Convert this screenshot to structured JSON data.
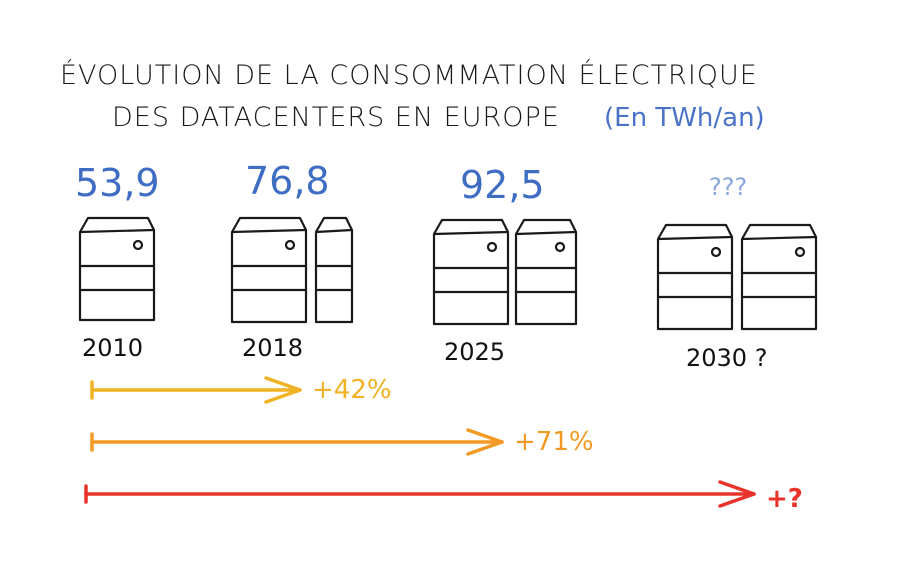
{
  "chart_data": {
    "type": "bar",
    "title_line1": "ÉVOLUTION DE LA CONSOMMATION ÉLECTRIQUE",
    "title_line2": "DES DATACENTERS EN EUROPE",
    "unit": "(En TWh/an)",
    "categories": [
      "2010",
      "2018",
      "2025",
      "2030 ?"
    ],
    "values": [
      53.9,
      76.8,
      92.5,
      null
    ],
    "value_labels": [
      "53,9",
      "76,8",
      "92,5",
      "???"
    ],
    "growth_arrows": [
      {
        "from": "2010",
        "to": "2018",
        "label": "+42%",
        "color": "#f0b323"
      },
      {
        "from": "2010",
        "to": "2025",
        "label": "+71%",
        "color": "#f39a24"
      },
      {
        "from": "2010",
        "to": "2030 ?",
        "label": "+?",
        "color": "#e8332a"
      }
    ]
  },
  "colors": {
    "value_text": "#3f6dc4",
    "ink": "#1a1a1a"
  }
}
